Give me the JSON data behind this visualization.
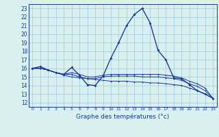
{
  "xlabel": "Graphe des températures (°c)",
  "bg_color": "#d8f0f0",
  "line_color": "#1a3a9a",
  "grid_color": "#a0c8d8",
  "x_ticks": [
    0,
    1,
    2,
    3,
    4,
    5,
    6,
    7,
    8,
    9,
    10,
    11,
    12,
    13,
    14,
    15,
    16,
    17,
    18,
    19,
    20,
    21,
    22,
    23
  ],
  "y_ticks": [
    12,
    13,
    14,
    15,
    16,
    17,
    18,
    19,
    20,
    21,
    22,
    23
  ],
  "ylim": [
    11.5,
    23.5
  ],
  "xlim": [
    -0.5,
    23.5
  ],
  "line1": [
    16.0,
    16.2,
    15.8,
    15.5,
    15.3,
    16.1,
    15.2,
    14.1,
    14.0,
    15.1,
    17.2,
    19.0,
    21.0,
    22.3,
    23.0,
    21.3,
    18.1,
    17.0,
    14.9,
    14.8,
    14.1,
    13.4,
    13.0,
    12.5
  ],
  "line2": [
    16.0,
    16.0,
    15.8,
    15.5,
    15.3,
    15.5,
    15.3,
    15.0,
    15.0,
    15.2,
    15.3,
    15.3,
    15.3,
    15.3,
    15.3,
    15.3,
    15.3,
    15.2,
    15.1,
    14.9,
    14.5,
    14.2,
    13.7,
    12.5
  ],
  "line3": [
    16.0,
    16.0,
    15.8,
    15.5,
    15.3,
    15.3,
    15.0,
    14.8,
    14.8,
    15.0,
    15.1,
    15.1,
    15.1,
    15.1,
    15.0,
    15.0,
    15.0,
    14.9,
    14.8,
    14.6,
    14.2,
    13.9,
    13.4,
    12.5
  ],
  "line4": [
    16.0,
    16.0,
    15.8,
    15.5,
    15.2,
    15.0,
    14.9,
    14.8,
    14.7,
    14.6,
    14.5,
    14.5,
    14.5,
    14.4,
    14.4,
    14.3,
    14.3,
    14.2,
    14.1,
    14.0,
    13.7,
    13.4,
    13.0,
    12.5
  ]
}
